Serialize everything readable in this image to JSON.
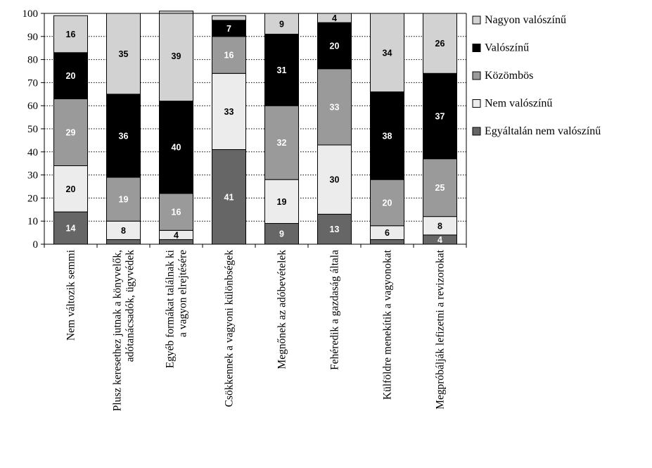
{
  "chart_data": {
    "type": "bar",
    "stacked": true,
    "categories": [
      [
        "Nem változik semmi"
      ],
      [
        "Plusz keresethez jutnak a könyvelők,",
        "adótanácsadók, ügyvédek"
      ],
      [
        "Egyéb formákat találnak ki",
        "a vagyon elrejtésére"
      ],
      [
        "Csökkennek a vagyoni különbségek"
      ],
      [
        "Megnőnek az adóbevételek"
      ],
      [
        "Fehéredik a gazdaság általa"
      ],
      [
        "Külföldre menekítik a vagyonokat"
      ],
      [
        "Megpróbálják lefizetni a revizorokat"
      ]
    ],
    "series": [
      {
        "name": "Egyáltalán nem valószínű",
        "color": "#666666",
        "label_color": "#ffffff",
        "values": [
          14,
          2,
          2,
          41,
          9,
          13,
          2,
          4
        ],
        "labels": [
          "14",
          "",
          "",
          "41",
          "9",
          "13",
          "",
          "4"
        ]
      },
      {
        "name": "Nem valószínű",
        "color": "#ececec",
        "label_color": "#000000",
        "values": [
          20,
          8,
          4,
          33,
          19,
          30,
          6,
          8
        ],
        "labels": [
          "20",
          "8",
          "4",
          "33",
          "19",
          "30",
          "6",
          "8"
        ]
      },
      {
        "name": "Közömbös",
        "color": "#9a9a9a",
        "label_color": "#ffffff",
        "values": [
          29,
          19,
          16,
          16,
          32,
          33,
          20,
          25
        ],
        "labels": [
          "29",
          "19",
          "16",
          "16",
          "32",
          "33",
          "20",
          "25"
        ]
      },
      {
        "name": "Valószínű",
        "color": "#000000",
        "label_color": "#ffffff",
        "values": [
          20,
          36,
          40,
          7,
          31,
          20,
          38,
          37
        ],
        "labels": [
          "20",
          "36",
          "40",
          "7",
          "31",
          "20",
          "38",
          "37"
        ]
      },
      {
        "name": "Nagyon valószínű",
        "color": "#d2d2d2",
        "label_color": "#000000",
        "values": [
          16,
          35,
          39,
          2,
          9,
          4,
          34,
          26
        ],
        "labels": [
          "16",
          "35",
          "39",
          "",
          "9",
          "4",
          "34",
          "26"
        ]
      }
    ],
    "legend_order": [
      4,
      3,
      2,
      1,
      0
    ],
    "legend_position": "right",
    "ylim": [
      0,
      100
    ],
    "yticks": [
      "0",
      "10",
      "20",
      "30",
      "40",
      "50",
      "60",
      "70",
      "80",
      "90",
      "100"
    ],
    "grid": "dotted horizontal"
  }
}
